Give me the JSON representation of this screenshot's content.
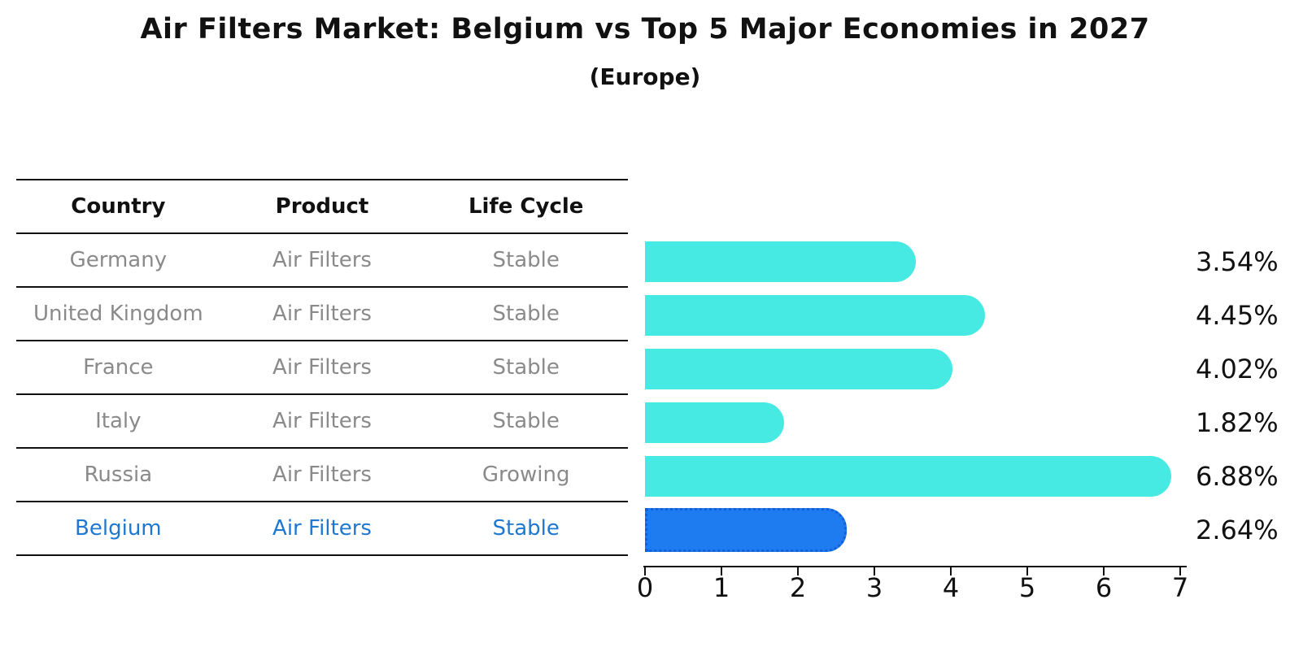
{
  "title": "Air Filters Market: Belgium vs Top 5 Major Economies in 2027",
  "subtitle": "(Europe)",
  "table": {
    "headers": [
      "Country",
      "Product",
      "Life Cycle"
    ],
    "rows": [
      {
        "country": "Germany",
        "product": "Air Filters",
        "life_cycle": "Stable",
        "highlight": false
      },
      {
        "country": "United Kingdom",
        "product": "Air Filters",
        "life_cycle": "Stable",
        "highlight": false
      },
      {
        "country": "France",
        "product": "Air Filters",
        "life_cycle": "Stable",
        "highlight": false
      },
      {
        "country": "Italy",
        "product": "Air Filters",
        "life_cycle": "Stable",
        "highlight": false
      },
      {
        "country": "Russia",
        "product": "Air Filters",
        "life_cycle": "Growing",
        "highlight": false
      },
      {
        "country": "Belgium",
        "product": "Air Filters",
        "life_cycle": "Stable",
        "highlight": true
      }
    ]
  },
  "chart_data": {
    "type": "bar",
    "orientation": "horizontal",
    "title": "Air Filters Market: Belgium vs Top 5 Major Economies in 2027",
    "subtitle": "(Europe)",
    "categories": [
      "Germany",
      "United Kingdom",
      "France",
      "Italy",
      "Russia",
      "Belgium"
    ],
    "values": [
      3.54,
      4.45,
      4.02,
      1.82,
      6.88,
      2.64
    ],
    "value_labels": [
      "3.54%",
      "4.45%",
      "4.02%",
      "1.82%",
      "6.88%",
      "2.64%"
    ],
    "xlabel": "",
    "ylabel": "",
    "xlim": [
      0,
      7
    ],
    "x_ticks": [
      0,
      1,
      2,
      3,
      4,
      5,
      6,
      7
    ],
    "grid": false,
    "legend": "none",
    "highlight_index": 5
  },
  "colors": {
    "bar_color": "#47eae2",
    "highlight_bar_color": "#1e7bf0",
    "highlight_border_color": "#135fd6",
    "highlight_text_color": "#1e78d2",
    "table_text_color": "#8a8a8a",
    "axis_color": "#111111",
    "background": "#ffffff"
  }
}
